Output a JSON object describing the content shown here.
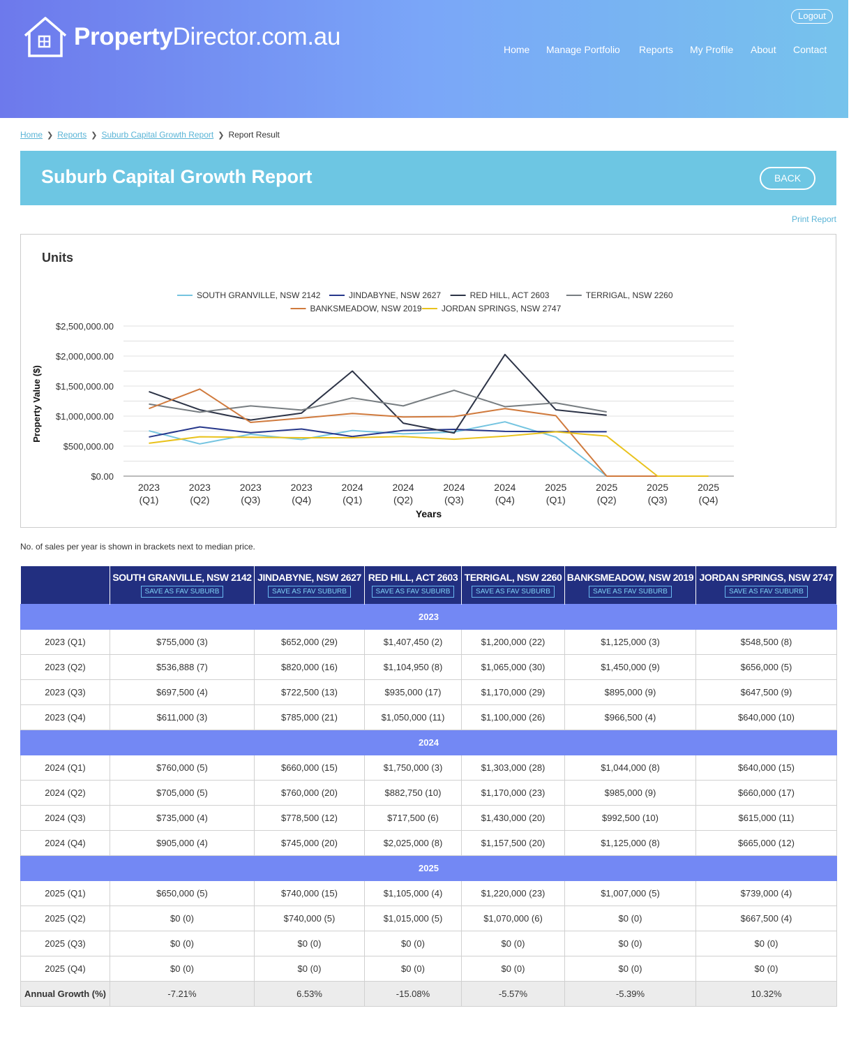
{
  "brand": {
    "name_bold": "Property",
    "name_rest": "Director.com.au"
  },
  "header": {
    "logout": "Logout",
    "nav": [
      "Home",
      "Manage Portfolio",
      "Reports",
      "My Profile",
      "About",
      "Contact"
    ]
  },
  "breadcrumb": {
    "home": "Home",
    "reports": "Reports",
    "report": "Suburb Capital Growth Report",
    "current": "Report Result"
  },
  "page": {
    "title": "Suburb Capital Growth Report",
    "back": "BACK",
    "print": "Print Report",
    "note": "No. of sales per year is shown in brackets next to median price."
  },
  "chart_data": {
    "type": "line",
    "title": "Units",
    "xlabel": "Years",
    "ylabel": "Property Value ($)",
    "ylim": [
      0,
      2500000
    ],
    "yticks": [
      "$2,500,000.00",
      "$2,000,000.00",
      "$1,500,000.00",
      "$1,000,000.00",
      "$500,000.00",
      "$0.00"
    ],
    "ytick_values": [
      2500000,
      2000000,
      1500000,
      1000000,
      500000,
      0
    ],
    "categories": [
      [
        "2023",
        "(Q1)"
      ],
      [
        "2023",
        "(Q2)"
      ],
      [
        "2023",
        "(Q3)"
      ],
      [
        "2023",
        "(Q4)"
      ],
      [
        "2024",
        "(Q1)"
      ],
      [
        "2024",
        "(Q2)"
      ],
      [
        "2024",
        "(Q3)"
      ],
      [
        "2024",
        "(Q4)"
      ],
      [
        "2025",
        "(Q1)"
      ],
      [
        "2025",
        "(Q2)"
      ],
      [
        "2025",
        "(Q3)"
      ],
      [
        "2025",
        "(Q4)"
      ]
    ],
    "legend_position": "top-center",
    "series": [
      {
        "name": "SOUTH GRANVILLE, NSW 2142",
        "color": "#74c4e0",
        "values": [
          755000,
          536888,
          697500,
          611000,
          760000,
          705000,
          735000,
          905000,
          650000,
          0,
          0,
          0
        ]
      },
      {
        "name": "JINDABYNE, NSW 2627",
        "color": "#26378b",
        "values": [
          652000,
          820000,
          722500,
          785000,
          660000,
          760000,
          778500,
          745000,
          740000,
          740000,
          null,
          null
        ]
      },
      {
        "name": "RED HILL, ACT 2603",
        "color": "#2c3346",
        "values": [
          1407450,
          1104950,
          935000,
          1050000,
          1750000,
          882750,
          717500,
          2025000,
          1105000,
          1015000,
          null,
          null
        ]
      },
      {
        "name": "TERRIGAL, NSW 2260",
        "color": "#777d81",
        "values": [
          1200000,
          1065000,
          1170000,
          1100000,
          1303000,
          1170000,
          1430000,
          1157500,
          1220000,
          1070000,
          null,
          null
        ]
      },
      {
        "name": "BANKSMEADOW, NSW 2019",
        "color": "#d07a3d",
        "values": [
          1125000,
          1450000,
          895000,
          966500,
          1044000,
          985000,
          992500,
          1125000,
          1007000,
          0,
          0,
          0
        ]
      },
      {
        "name": "JORDAN SPRINGS, NSW 2747",
        "color": "#e9c21c",
        "values": [
          548500,
          656000,
          647500,
          640000,
          640000,
          660000,
          615000,
          665000,
          739000,
          667500,
          0,
          0
        ]
      }
    ]
  },
  "table": {
    "fav_label": "SAVE AS FAV SUBURB",
    "columns": [
      "SOUTH GRANVILLE, NSW 2142",
      "JINDABYNE, NSW 2627",
      "RED HILL, ACT 2603",
      "TERRIGAL, NSW 2260",
      "BANKSMEADOW, NSW 2019",
      "JORDAN SPRINGS, NSW 2747"
    ],
    "years": [
      {
        "year": "2023",
        "rows": [
          {
            "label": "2023 (Q1)",
            "cells": [
              "$755,000 (3)",
              "$652,000 (29)",
              "$1,407,450 (2)",
              "$1,200,000 (22)",
              "$1,125,000 (3)",
              "$548,500 (8)"
            ]
          },
          {
            "label": "2023 (Q2)",
            "cells": [
              "$536,888 (7)",
              "$820,000 (16)",
              "$1,104,950 (8)",
              "$1,065,000 (30)",
              "$1,450,000 (9)",
              "$656,000 (5)"
            ]
          },
          {
            "label": "2023 (Q3)",
            "cells": [
              "$697,500 (4)",
              "$722,500 (13)",
              "$935,000 (17)",
              "$1,170,000 (29)",
              "$895,000 (9)",
              "$647,500 (9)"
            ]
          },
          {
            "label": "2023 (Q4)",
            "cells": [
              "$611,000 (3)",
              "$785,000 (21)",
              "$1,050,000 (11)",
              "$1,100,000 (26)",
              "$966,500 (4)",
              "$640,000 (10)"
            ]
          }
        ]
      },
      {
        "year": "2024",
        "rows": [
          {
            "label": "2024 (Q1)",
            "cells": [
              "$760,000 (5)",
              "$660,000 (15)",
              "$1,750,000 (3)",
              "$1,303,000 (28)",
              "$1,044,000 (8)",
              "$640,000 (15)"
            ]
          },
          {
            "label": "2024 (Q2)",
            "cells": [
              "$705,000 (5)",
              "$760,000 (20)",
              "$882,750 (10)",
              "$1,170,000 (23)",
              "$985,000 (9)",
              "$660,000 (17)"
            ]
          },
          {
            "label": "2024 (Q3)",
            "cells": [
              "$735,000 (4)",
              "$778,500 (12)",
              "$717,500 (6)",
              "$1,430,000 (20)",
              "$992,500 (10)",
              "$615,000 (11)"
            ]
          },
          {
            "label": "2024 (Q4)",
            "cells": [
              "$905,000 (4)",
              "$745,000 (20)",
              "$2,025,000 (8)",
              "$1,157,500 (20)",
              "$1,125,000 (8)",
              "$665,000 (12)"
            ]
          }
        ]
      },
      {
        "year": "2025",
        "rows": [
          {
            "label": "2025 (Q1)",
            "cells": [
              "$650,000 (5)",
              "$740,000 (15)",
              "$1,105,000 (4)",
              "$1,220,000 (23)",
              "$1,007,000 (5)",
              "$739,000 (4)"
            ]
          },
          {
            "label": "2025 (Q2)",
            "cells": [
              "$0 (0)",
              "$740,000 (5)",
              "$1,015,000 (5)",
              "$1,070,000 (6)",
              "$0 (0)",
              "$667,500 (4)"
            ]
          },
          {
            "label": "2025 (Q3)",
            "cells": [
              "$0 (0)",
              "$0 (0)",
              "$0 (0)",
              "$0 (0)",
              "$0 (0)",
              "$0 (0)"
            ]
          },
          {
            "label": "2025 (Q4)",
            "cells": [
              "$0 (0)",
              "$0 (0)",
              "$0 (0)",
              "$0 (0)",
              "$0 (0)",
              "$0 (0)"
            ]
          }
        ]
      }
    ],
    "growth": {
      "label": "Annual Growth (%)",
      "cells": [
        "-7.21%",
        "6.53%",
        "-15.08%",
        "-5.57%",
        "-5.39%",
        "10.32%"
      ]
    }
  }
}
